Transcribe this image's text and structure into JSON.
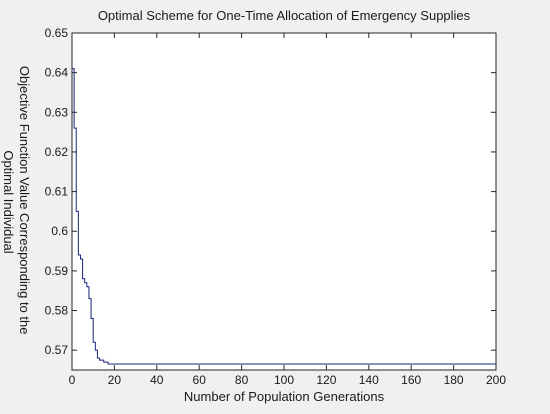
{
  "chart_data": {
    "type": "line",
    "title": "Optimal Scheme for One-Time Allocation of Emergency Supplies",
    "xlabel": "Number of Population Generations",
    "ylabel_lines": [
      "Objective Function Value Corresponding to the",
      "Optimal Individual"
    ],
    "xlim": [
      0,
      200
    ],
    "ylim": [
      0.565,
      0.65
    ],
    "xticks": [
      0,
      20,
      40,
      60,
      80,
      100,
      120,
      140,
      160,
      180,
      200
    ],
    "yticks": [
      0.57,
      0.58,
      0.59,
      0.6,
      0.61,
      0.62,
      0.63,
      0.64,
      0.65
    ],
    "grid": false,
    "series": [
      {
        "color": "#1a237e",
        "points": [
          [
            0,
            0.641
          ],
          [
            1,
            0.641
          ],
          [
            1,
            0.626
          ],
          [
            2,
            0.626
          ],
          [
            2,
            0.605
          ],
          [
            3,
            0.605
          ],
          [
            3,
            0.594
          ],
          [
            4,
            0.594
          ],
          [
            4,
            0.593
          ],
          [
            5,
            0.593
          ],
          [
            5,
            0.588
          ],
          [
            6,
            0.588
          ],
          [
            6,
            0.587
          ],
          [
            7,
            0.587
          ],
          [
            7,
            0.586
          ],
          [
            8,
            0.586
          ],
          [
            8,
            0.583
          ],
          [
            9,
            0.583
          ],
          [
            9,
            0.578
          ],
          [
            10,
            0.578
          ],
          [
            10,
            0.572
          ],
          [
            11,
            0.572
          ],
          [
            11,
            0.57
          ],
          [
            12,
            0.57
          ],
          [
            12,
            0.568
          ],
          [
            13,
            0.568
          ],
          [
            13,
            0.5675
          ],
          [
            15,
            0.5675
          ],
          [
            15,
            0.567
          ],
          [
            17,
            0.567
          ],
          [
            17,
            0.5665
          ],
          [
            200,
            0.5665
          ]
        ]
      }
    ]
  }
}
